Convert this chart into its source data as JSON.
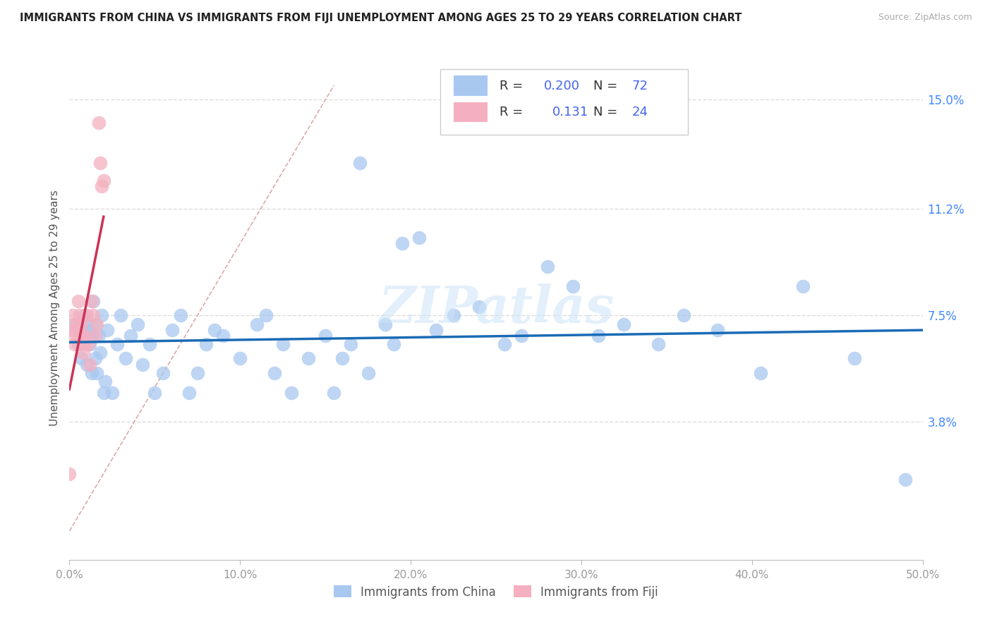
{
  "title": "IMMIGRANTS FROM CHINA VS IMMIGRANTS FROM FIJI UNEMPLOYMENT AMONG AGES 25 TO 29 YEARS CORRELATION CHART",
  "source": "Source: ZipAtlas.com",
  "ylabel": "Unemployment Among Ages 25 to 29 years",
  "xlim": [
    0.0,
    0.5
  ],
  "ylim": [
    -0.01,
    0.165
  ],
  "xtick_labels": [
    "0.0%",
    "10.0%",
    "20.0%",
    "30.0%",
    "40.0%",
    "50.0%"
  ],
  "xtick_vals": [
    0.0,
    0.1,
    0.2,
    0.3,
    0.4,
    0.5
  ],
  "ytick_labels": [
    "3.8%",
    "7.5%",
    "11.2%",
    "15.0%"
  ],
  "ytick_vals": [
    0.038,
    0.075,
    0.112,
    0.15
  ],
  "china_R": "0.200",
  "china_N": "72",
  "fiji_R": "0.131",
  "fiji_N": "24",
  "china_color": "#a8c8f0",
  "china_line_color": "#1a6bb5",
  "fiji_color": "#f4b0c0",
  "fiji_line_color": "#cc3355",
  "diag_line_color": "#ddaaaa",
  "watermark": "ZIPatlas",
  "china_x": [
    0.003,
    0.005,
    0.006,
    0.007,
    0.008,
    0.009,
    0.01,
    0.01,
    0.011,
    0.012,
    0.013,
    0.013,
    0.014,
    0.015,
    0.015,
    0.016,
    0.017,
    0.018,
    0.019,
    0.02,
    0.021,
    0.022,
    0.025,
    0.028,
    0.03,
    0.033,
    0.036,
    0.04,
    0.043,
    0.047,
    0.05,
    0.055,
    0.06,
    0.065,
    0.07,
    0.075,
    0.08,
    0.085,
    0.09,
    0.1,
    0.11,
    0.115,
    0.12,
    0.125,
    0.13,
    0.14,
    0.15,
    0.155,
    0.16,
    0.165,
    0.17,
    0.175,
    0.185,
    0.19,
    0.195,
    0.205,
    0.215,
    0.225,
    0.24,
    0.255,
    0.265,
    0.28,
    0.295,
    0.31,
    0.325,
    0.345,
    0.36,
    0.38,
    0.405,
    0.43,
    0.46,
    0.49
  ],
  "china_y": [
    0.072,
    0.065,
    0.07,
    0.06,
    0.068,
    0.075,
    0.058,
    0.072,
    0.07,
    0.065,
    0.068,
    0.055,
    0.08,
    0.06,
    0.072,
    0.055,
    0.068,
    0.062,
    0.075,
    0.048,
    0.052,
    0.07,
    0.048,
    0.065,
    0.075,
    0.06,
    0.068,
    0.072,
    0.058,
    0.065,
    0.048,
    0.055,
    0.07,
    0.075,
    0.048,
    0.055,
    0.065,
    0.07,
    0.068,
    0.06,
    0.072,
    0.075,
    0.055,
    0.065,
    0.048,
    0.06,
    0.068,
    0.048,
    0.06,
    0.065,
    0.128,
    0.055,
    0.072,
    0.065,
    0.1,
    0.102,
    0.07,
    0.075,
    0.078,
    0.065,
    0.068,
    0.092,
    0.085,
    0.068,
    0.072,
    0.065,
    0.075,
    0.07,
    0.055,
    0.085,
    0.06,
    0.018
  ],
  "fiji_x": [
    0.0,
    0.001,
    0.002,
    0.002,
    0.003,
    0.004,
    0.005,
    0.006,
    0.007,
    0.007,
    0.008,
    0.008,
    0.009,
    0.01,
    0.011,
    0.012,
    0.013,
    0.014,
    0.015,
    0.016,
    0.017,
    0.018,
    0.019,
    0.02
  ],
  "fiji_y": [
    0.02,
    0.068,
    0.07,
    0.075,
    0.065,
    0.072,
    0.08,
    0.075,
    0.068,
    0.072,
    0.065,
    0.062,
    0.068,
    0.075,
    0.065,
    0.058,
    0.08,
    0.075,
    0.068,
    0.072,
    0.142,
    0.128,
    0.12,
    0.122
  ]
}
